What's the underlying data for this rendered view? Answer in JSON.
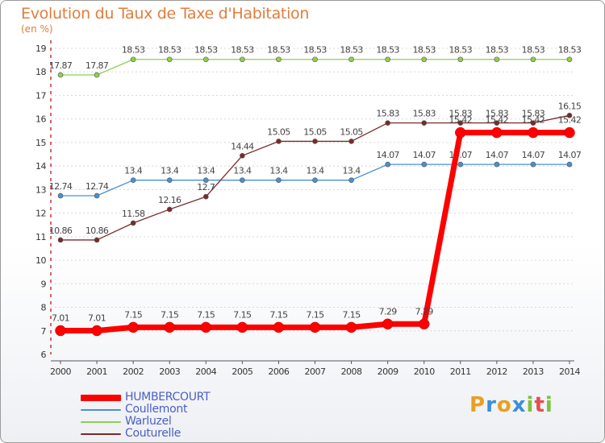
{
  "header": {
    "title": "Evolution du Taux de Taxe d'Habitation",
    "subtitle": "(en %)"
  },
  "colors": {
    "title": "#e07d3c",
    "axis": "#c00000",
    "grid": "#d8d8d8",
    "legend_text": "#4a5fc8"
  },
  "chart_data": {
    "type": "line",
    "title": "Evolution du Taux de Taxe d'Habitation",
    "ylabel": "(en %)",
    "xlabel": "",
    "x": [
      "2000",
      "2001",
      "2002",
      "2003",
      "2004",
      "2005",
      "2006",
      "2007",
      "2008",
      "2009",
      "2010",
      "2011",
      "2012",
      "2013",
      "2014"
    ],
    "ylim": [
      6,
      19
    ],
    "yticks": [
      "6",
      "7",
      "8",
      "9",
      "10",
      "11",
      "12",
      "13",
      "14",
      "15",
      "16",
      "17",
      "18",
      "19"
    ],
    "grid": "horizontal dotted",
    "legend_position": "bottom-left",
    "series": [
      {
        "name": "HUMBERCOURT",
        "color": "#ff0000",
        "values": [
          7.01,
          7.01,
          7.15,
          7.15,
          7.15,
          7.15,
          7.15,
          7.15,
          7.15,
          7.29,
          7.29,
          15.42,
          15.42,
          15.42,
          15.42
        ],
        "labels": [
          "7.01",
          "7.01",
          "7.15",
          "7.15",
          "7.15",
          "7.15",
          "7.15",
          "7.15",
          "7.15",
          "7.29",
          "7.29",
          "15.42",
          "15.42",
          "15.42",
          "15.42"
        ]
      },
      {
        "name": "Coullemont",
        "color": "#4a8fd0",
        "values": [
          12.74,
          12.74,
          13.4,
          13.4,
          13.4,
          13.4,
          13.4,
          13.4,
          13.4,
          14.07,
          14.07,
          14.07,
          14.07,
          14.07,
          14.07
        ],
        "labels": [
          "12.74",
          "12.74",
          "13.4",
          "13.4",
          "13.4",
          "13.4",
          "13.4",
          "13.4",
          "13.4",
          "14.07",
          "14.07",
          "14.07",
          "14.07",
          "14.07",
          "14.07"
        ]
      },
      {
        "name": "Warluzel",
        "color": "#8fcf4f",
        "values": [
          17.87,
          17.87,
          18.53,
          18.53,
          18.53,
          18.53,
          18.53,
          18.53,
          18.53,
          18.53,
          18.53,
          18.53,
          18.53,
          18.53,
          18.53
        ],
        "labels": [
          "17.87",
          "17.87",
          "18.53",
          "18.53",
          "18.53",
          "18.53",
          "18.53",
          "18.53",
          "18.53",
          "18.53",
          "18.53",
          "18.53",
          "18.53",
          "18.53",
          "18.53"
        ]
      },
      {
        "name": "Couturelle",
        "color": "#7a2a2a",
        "values": [
          10.86,
          10.86,
          11.58,
          12.16,
          12.7,
          14.44,
          15.05,
          15.05,
          15.05,
          15.83,
          15.83,
          15.83,
          15.83,
          15.83,
          16.15
        ],
        "labels": [
          "10.86",
          "10.86",
          "11.58",
          "12.16",
          "12.7",
          "14.44",
          "15.05",
          "15.05",
          "15.05",
          "15.83",
          "15.83",
          "15.83",
          "15.83",
          "15.83",
          "16.15"
        ]
      }
    ]
  },
  "logo": {
    "letters": [
      "P",
      "r",
      "o",
      "x",
      "i",
      "t",
      "i"
    ],
    "colors": [
      "#e8a020",
      "#3a8fd8",
      "#e8a020",
      "#3a8fd8",
      "#7ec040",
      "#e05050",
      "#7ec040"
    ]
  }
}
